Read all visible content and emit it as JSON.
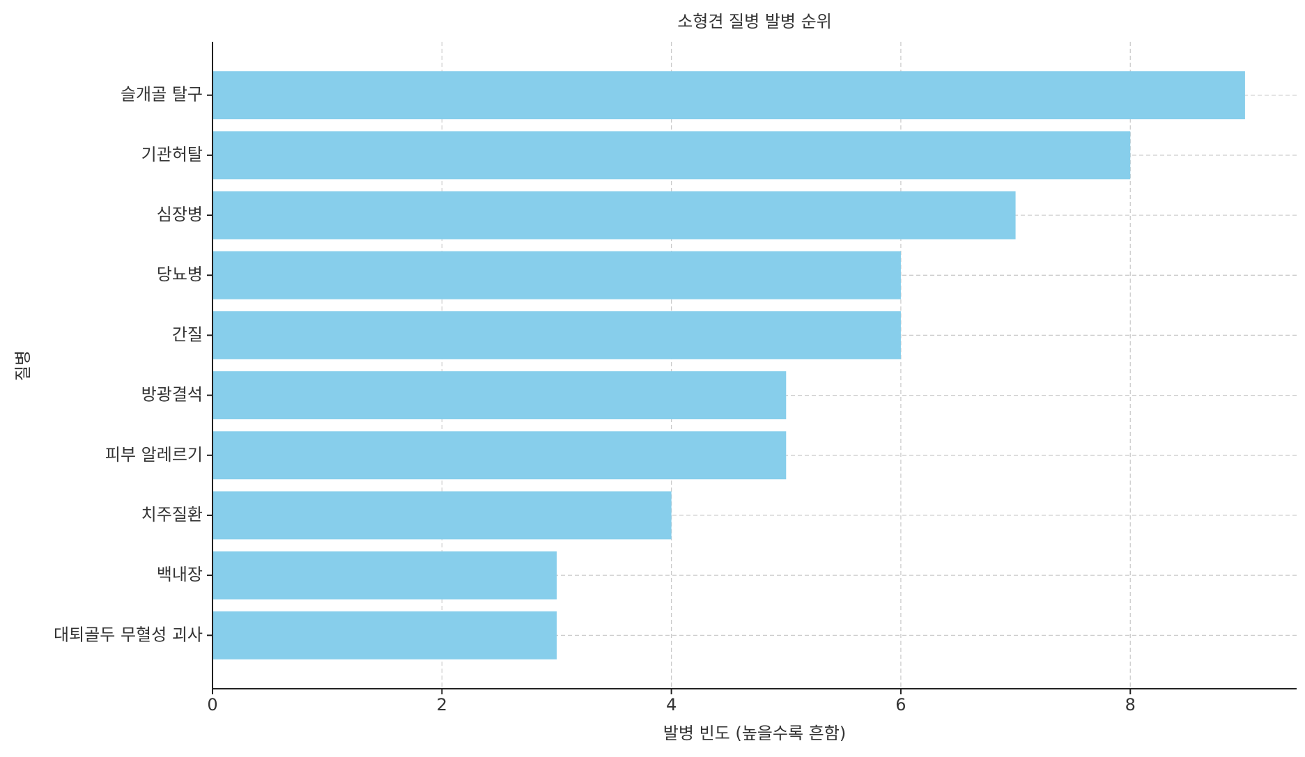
{
  "chart_data": {
    "type": "barh",
    "title": "소형견 질병 발병 순위",
    "x_label": "발병 빈도 (높을수록 흔함)",
    "y_label": "질병",
    "categories": [
      "슬개골 탈구",
      "기관허탈",
      "심장병",
      "당뇨병",
      "간질",
      "방광결석",
      "피부 알레르기",
      "치주질환",
      "백내장",
      "대퇴골두 무혈성 괴사"
    ],
    "values": [
      9,
      8,
      7,
      6,
      6,
      5,
      5,
      4,
      3,
      3
    ],
    "color": "#87ceeb",
    "xlim": [
      0,
      9.45
    ],
    "xticks": [
      0,
      2,
      4,
      6,
      8
    ],
    "grid": true
  }
}
